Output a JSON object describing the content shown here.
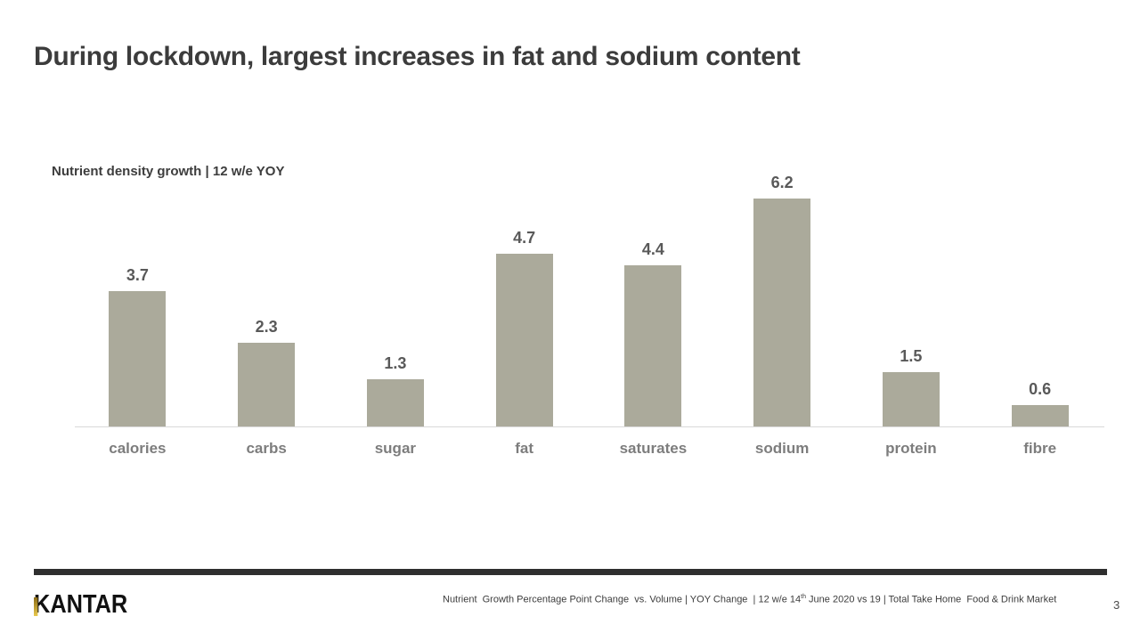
{
  "slide": {
    "title": "During lockdown, largest increases in fat and sodium content",
    "logo_text": "KANTAR",
    "page_number": "3",
    "footer": {
      "part1": "Nutrient  Growth Percentage Point Change  vs. Volume | YOY Change  | 12 w/e 14",
      "sup": "th",
      "part2": " June 2020 vs 19 | Total Take Home  Food & Drink Market"
    }
  },
  "chart_data": {
    "type": "bar",
    "title": "Nutrient density growth | 12 w/e YOY",
    "categories": [
      "calories",
      "carbs",
      "sugar",
      "fat",
      "saturates",
      "sodium",
      "protein",
      "fibre"
    ],
    "values": [
      3.7,
      2.3,
      1.3,
      4.7,
      4.4,
      6.2,
      1.5,
      0.6
    ],
    "xlabel": "",
    "ylabel": "",
    "ylim": [
      0,
      7
    ],
    "grid": false,
    "legend": false,
    "data_labels": true,
    "bar_color": "#abaa9b",
    "value_label_color": "#595959",
    "category_label_color": "#7d7d7d",
    "axis_line_color": "#d9d9d9"
  }
}
